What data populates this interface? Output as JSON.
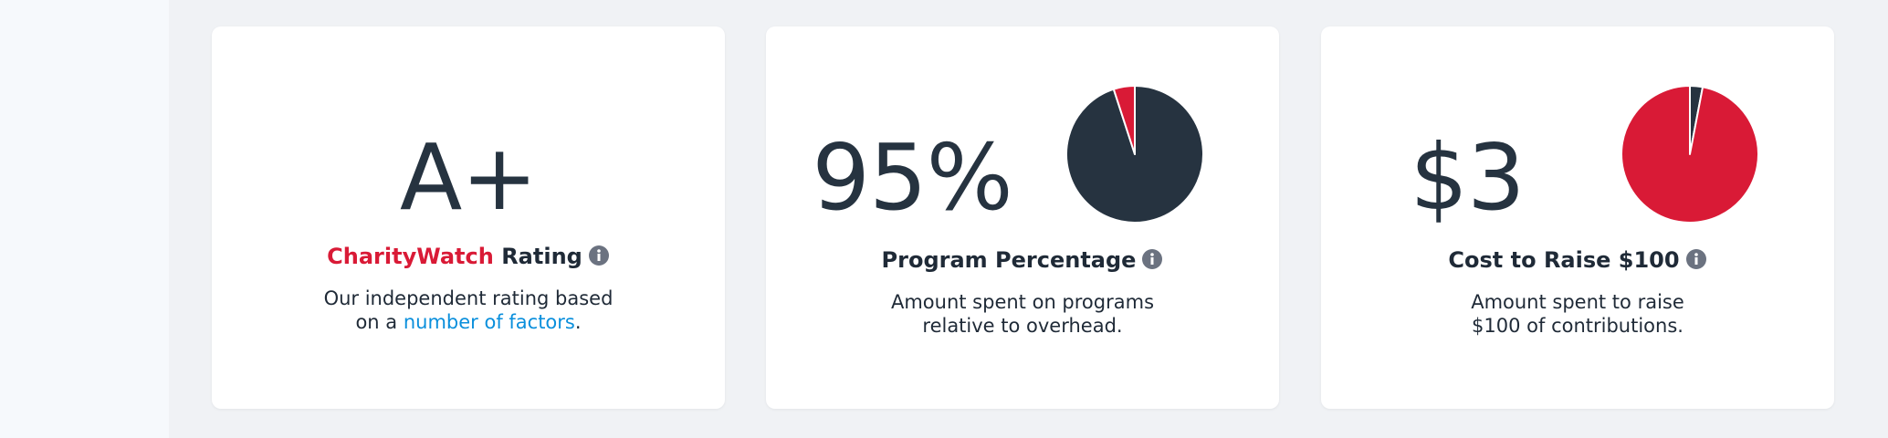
{
  "cards": [
    {
      "value": "A+",
      "title_brand": "CharityWatch",
      "title": "Rating",
      "desc_line1": "Our independent rating based",
      "desc_line2": "on a",
      "desc_link": "number of factors",
      "desc_end": "."
    },
    {
      "value": "95%",
      "title": "Program Percentage",
      "desc_line1": "Amount spent on programs",
      "desc_line2": "relative to overhead.",
      "pie": {
        "values": [
          95,
          5
        ],
        "colors": [
          "#263340",
          "#d91a36"
        ]
      }
    },
    {
      "value": "$3",
      "title": "Cost to Raise $100",
      "desc_line1": "Amount spent to raise",
      "desc_line2": "$100 of contributions.",
      "pie": {
        "values": [
          3,
          97
        ],
        "colors": [
          "#263340",
          "#d91a36"
        ]
      }
    }
  ]
}
